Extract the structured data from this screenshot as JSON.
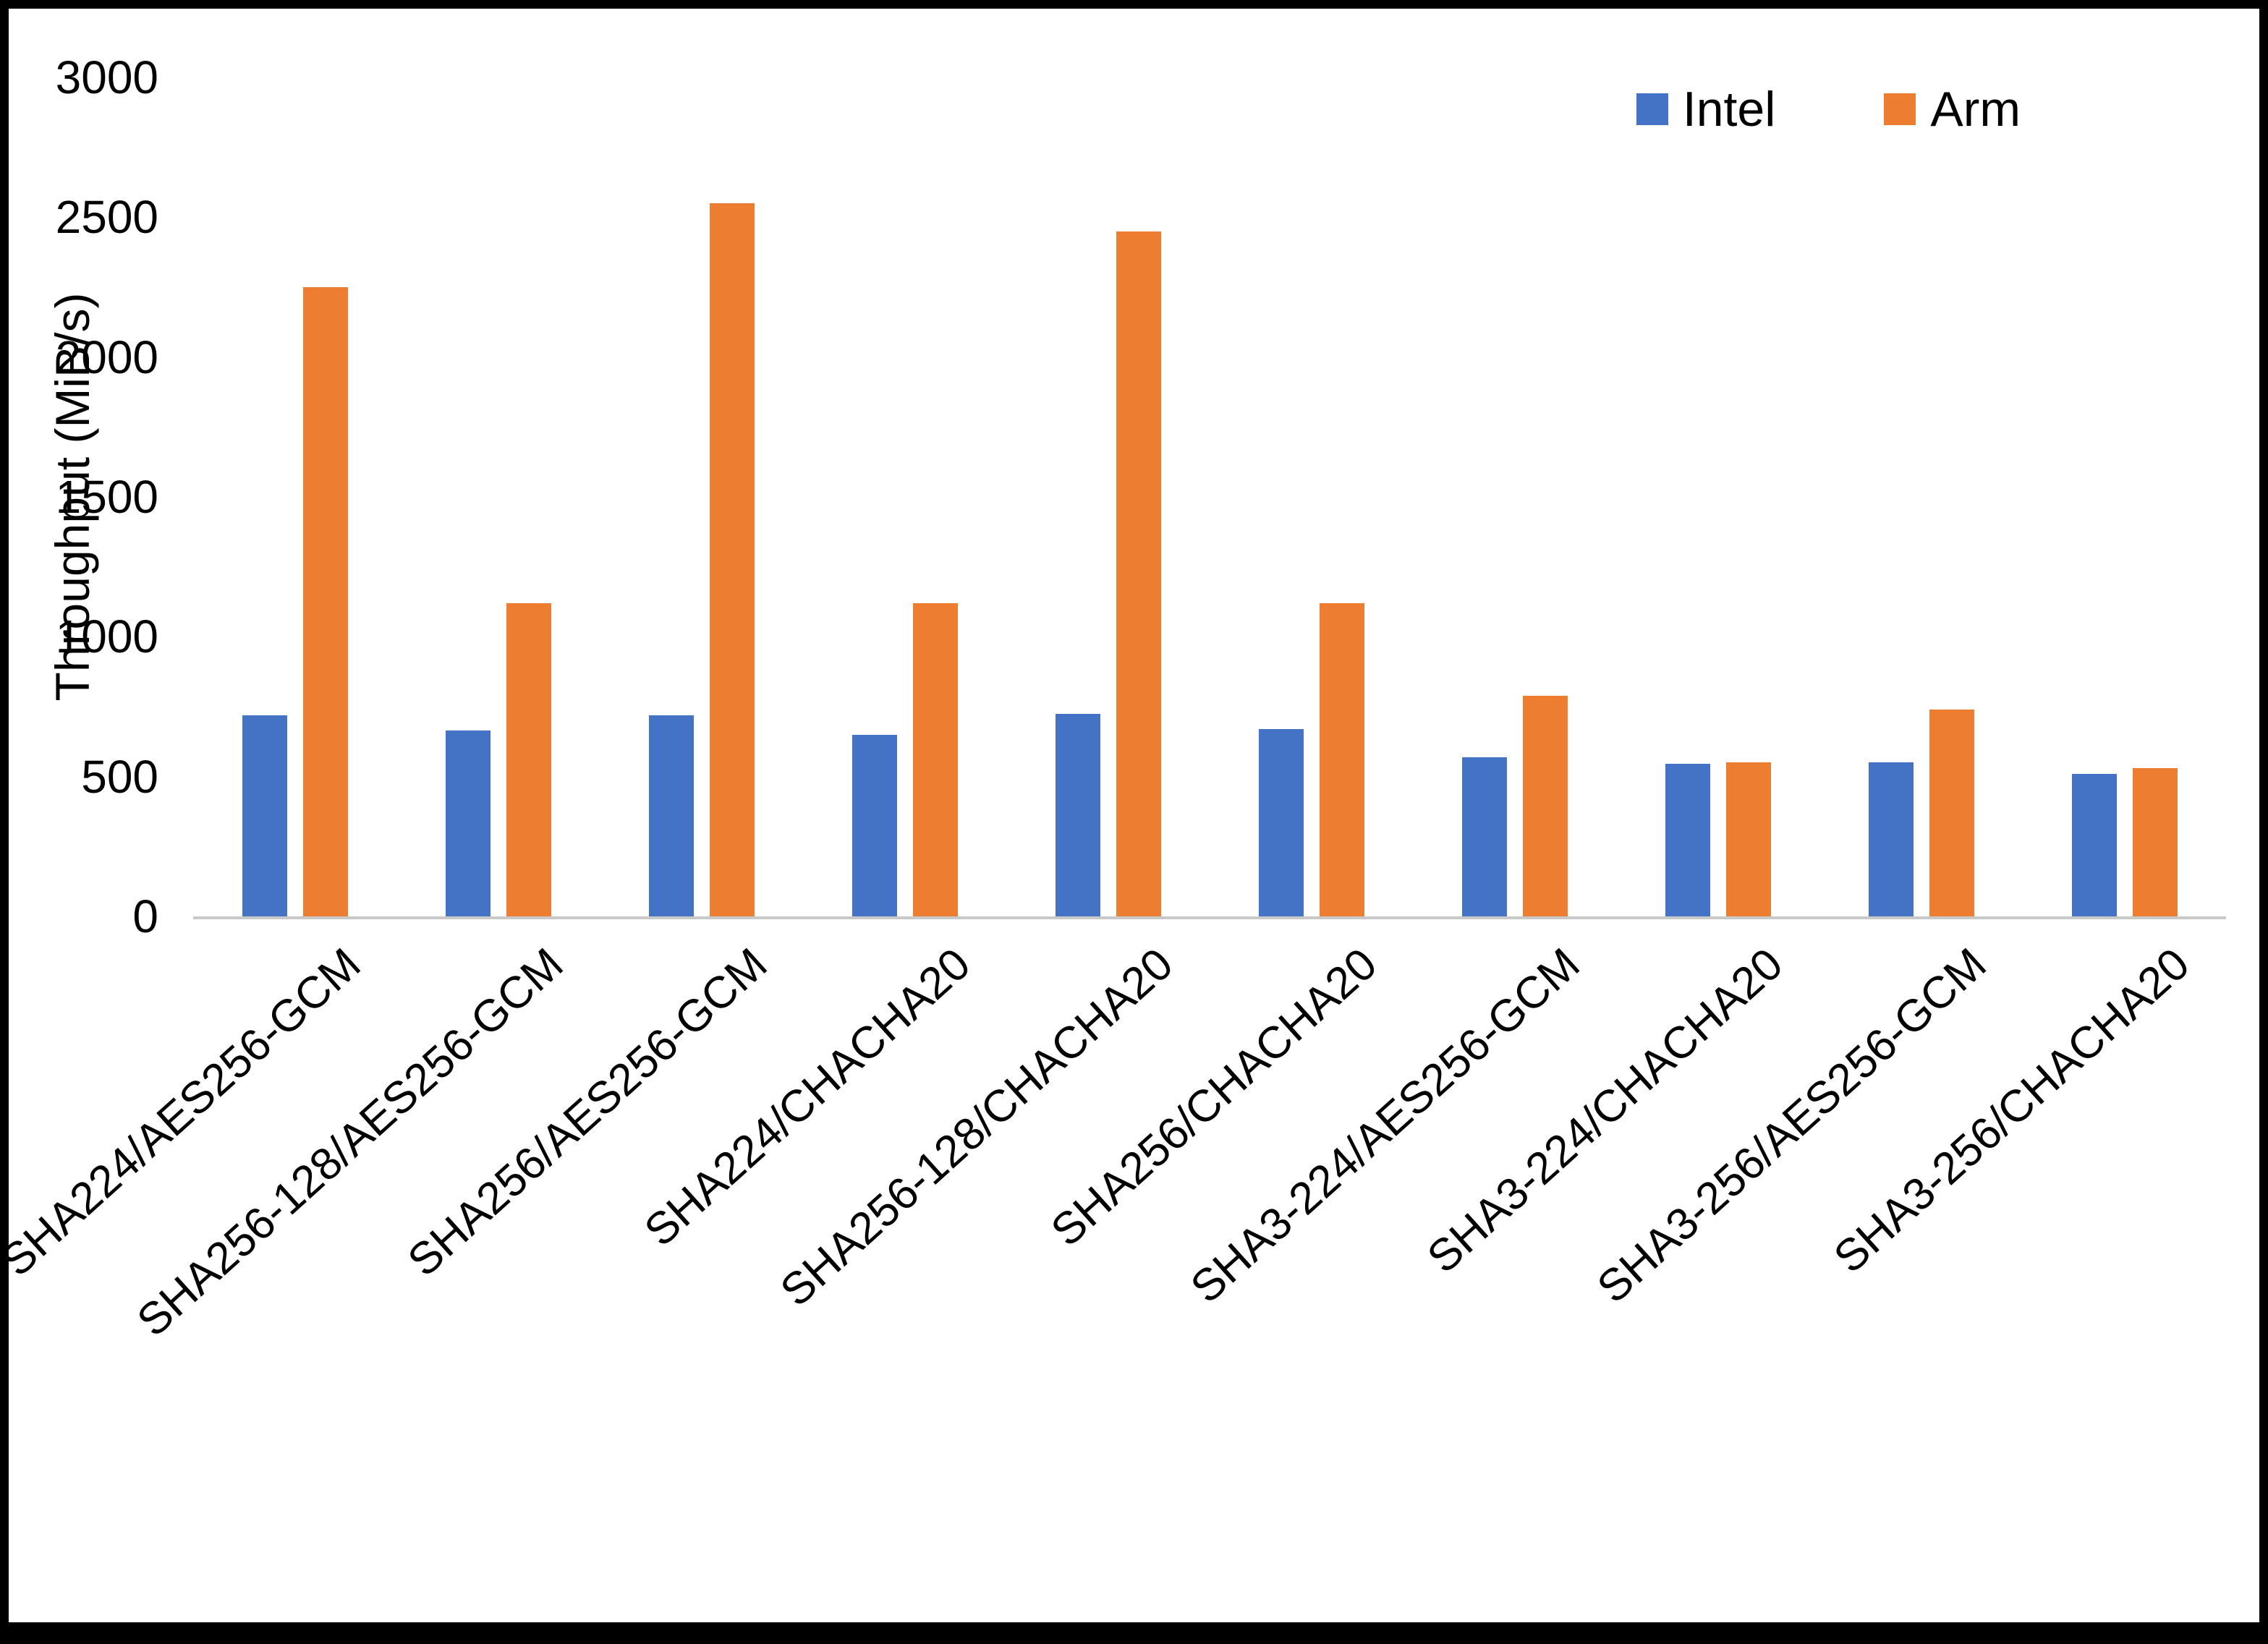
{
  "chart_data": {
    "type": "bar",
    "title": "",
    "xlabel": "",
    "ylabel": "Throughput (MiB/s)",
    "ylim": [
      0,
      3000
    ],
    "yticks": [
      0,
      500,
      1000,
      1500,
      2000,
      2500,
      3000
    ],
    "grid": false,
    "legend_position": "top-right",
    "categories": [
      "SHA224/AES256-GCM",
      "SHA256-128/AES256-GCM",
      "SHA256/AES256-GCM",
      "SHA224/CHACHA20",
      "SHA256-128/CHACHA20",
      "SHA256/CHACHA20",
      "SHA3-224/AES256-GCM",
      "SHA3-224/CHACHA20",
      "SHA3-256/AES256-GCM",
      "SHA3-256/CHACHA20"
    ],
    "series": [
      {
        "name": "Intel",
        "color": "#4472C4",
        "values": [
          720,
          665,
          720,
          650,
          725,
          670,
          570,
          545,
          550,
          510
        ]
      },
      {
        "name": "Arm",
        "color": "#ED7D31",
        "values": [
          2250,
          1120,
          2550,
          1120,
          2450,
          1120,
          790,
          550,
          740,
          530
        ]
      }
    ]
  },
  "legend": {
    "items": [
      {
        "label": "Intel",
        "color": "#4472C4"
      },
      {
        "label": "Arm",
        "color": "#ED7D31"
      }
    ]
  },
  "axes": {
    "y_title": "Throughput (MiB/s)"
  }
}
